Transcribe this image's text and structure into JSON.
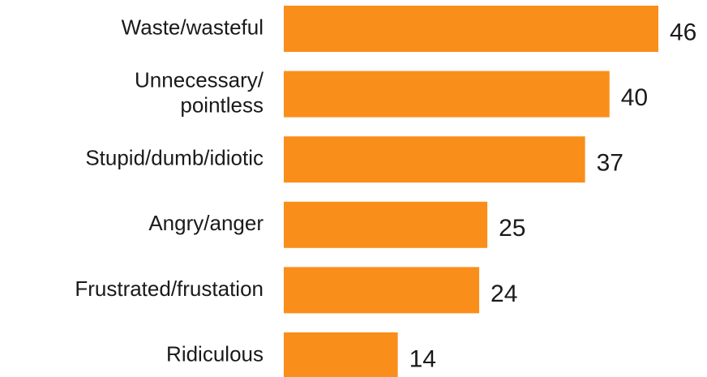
{
  "chart_data": {
    "type": "bar",
    "orientation": "horizontal",
    "categories": [
      "Waste/wasteful",
      "Unnecessary/\npointless",
      "Stupid/dumb/idiotic",
      "Angry/anger",
      "Frustrated/frustation",
      "Ridiculous"
    ],
    "values": [
      46,
      40,
      37,
      25,
      24,
      14
    ],
    "color": "#FA8E1B"
  }
}
